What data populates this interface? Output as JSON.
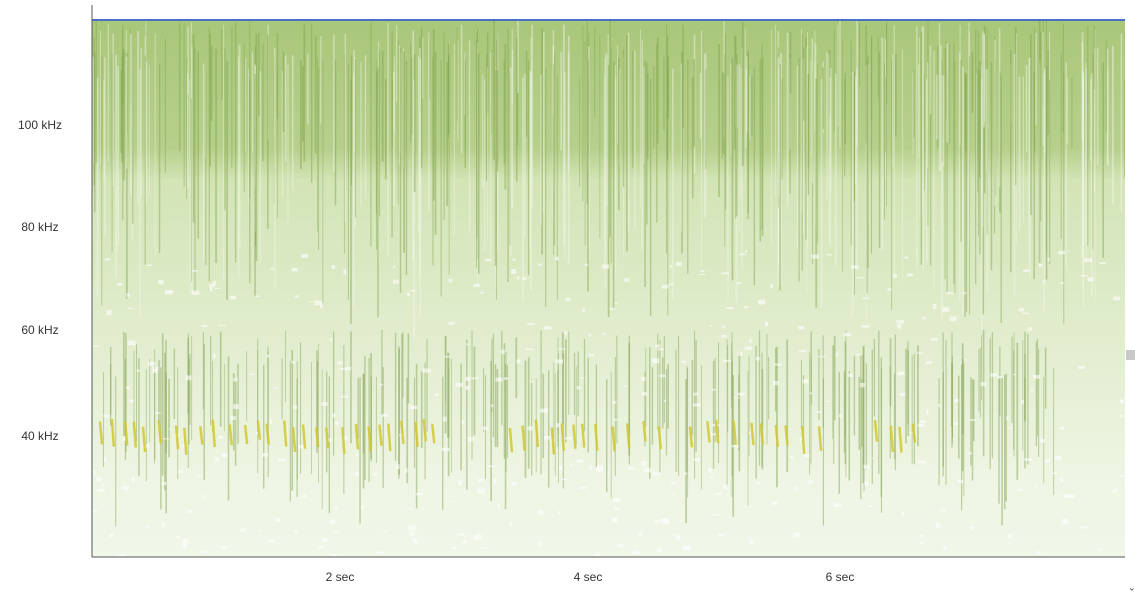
{
  "y_axis_labels": [
    "100 kHz",
    "80 kHz",
    "60 kHz",
    "40 kHz"
  ],
  "x_axis_labels": [
    "2  sec",
    "4  sec",
    "6  sec"
  ]
}
